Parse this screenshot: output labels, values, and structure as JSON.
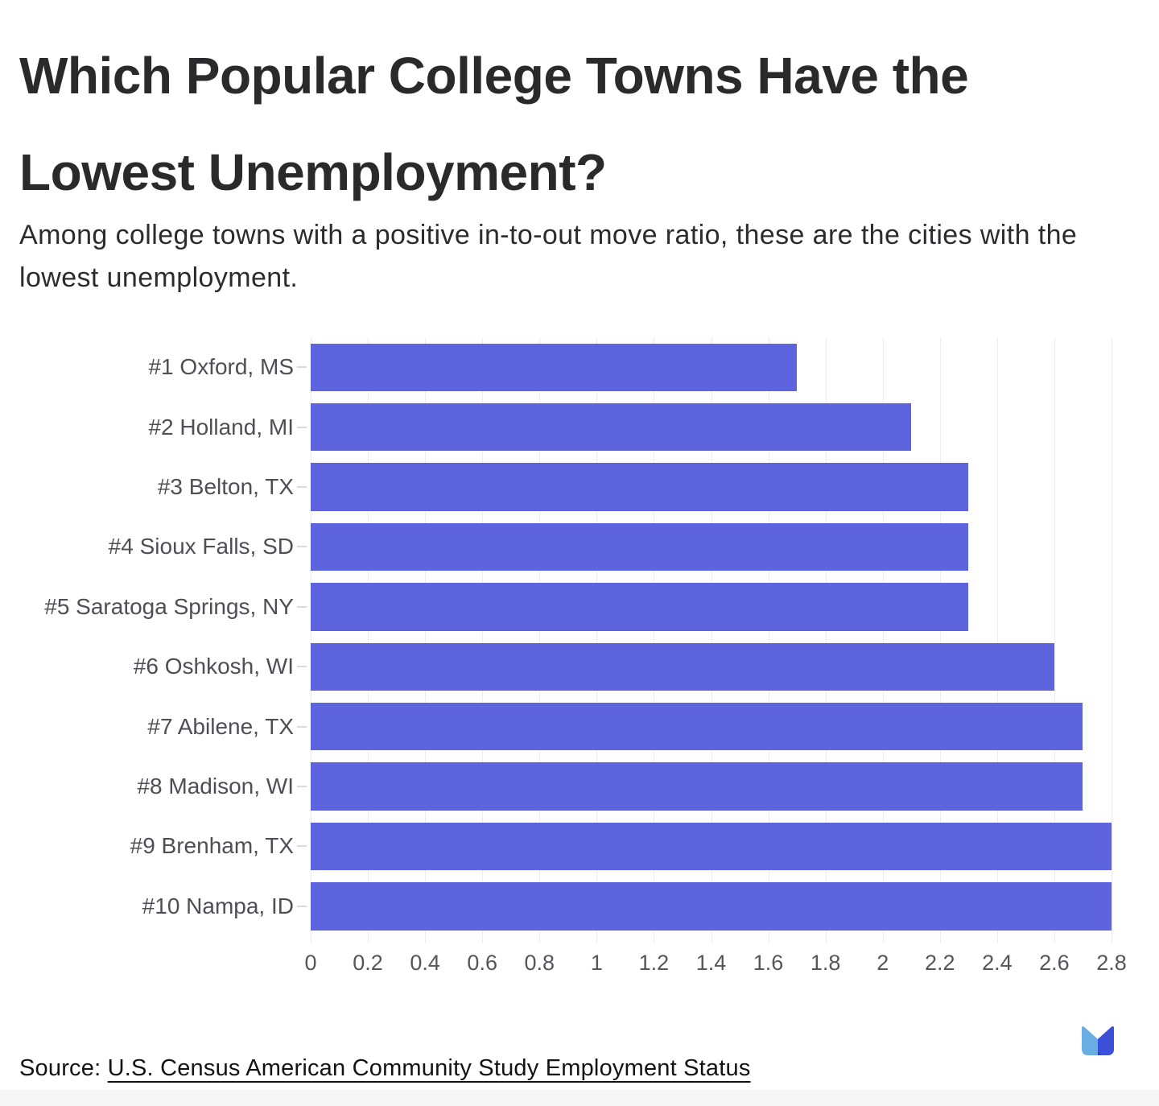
{
  "header": {
    "title": "Which Popular College Towns Have the Lowest Unemployment?",
    "subtitle": "Among college towns with a positive in-to-out move ratio, these are the cities with the lowest unemployment."
  },
  "chart_data": {
    "type": "bar",
    "orientation": "horizontal",
    "title": "Which Popular College Towns Have the Lowest Unemployment?",
    "xlabel": "",
    "ylabel": "",
    "categories": [
      "#1 Oxford, MS",
      "#2 Holland, MI",
      "#3 Belton, TX",
      "#4 Sioux Falls, SD",
      "#5 Saratoga Springs, NY",
      "#6 Oshkosh, WI",
      "#7 Abilene, TX",
      "#8 Madison, WI",
      "#9 Brenham, TX",
      "#10 Nampa, ID"
    ],
    "values": [
      1.7,
      2.1,
      2.3,
      2.3,
      2.3,
      2.6,
      2.7,
      2.7,
      2.8,
      2.8
    ],
    "xlim": [
      0,
      2.8
    ],
    "xticks": [
      "0",
      "0.2",
      "0.4",
      "0.6",
      "0.8",
      "1",
      "1.2",
      "1.4",
      "1.6",
      "1.8",
      "2",
      "2.2",
      "2.4",
      "2.6",
      "2.8"
    ],
    "xtick_values": [
      0,
      0.2,
      0.4,
      0.6,
      0.8,
      1,
      1.2,
      1.4,
      1.6,
      1.8,
      2,
      2.2,
      2.4,
      2.6,
      2.8
    ],
    "grid": true,
    "legend": false,
    "bar_color": "#5e63de",
    "gridline_color": "#ebebf0"
  },
  "footer": {
    "source_prefix": "Source: ",
    "source_link": "U.S. Census American Community Study Employment Status"
  },
  "logo_colors": {
    "light_blue": "#69aee2",
    "royal_blue": "#3c4fd8",
    "deep_blue": "#2d3cab"
  }
}
